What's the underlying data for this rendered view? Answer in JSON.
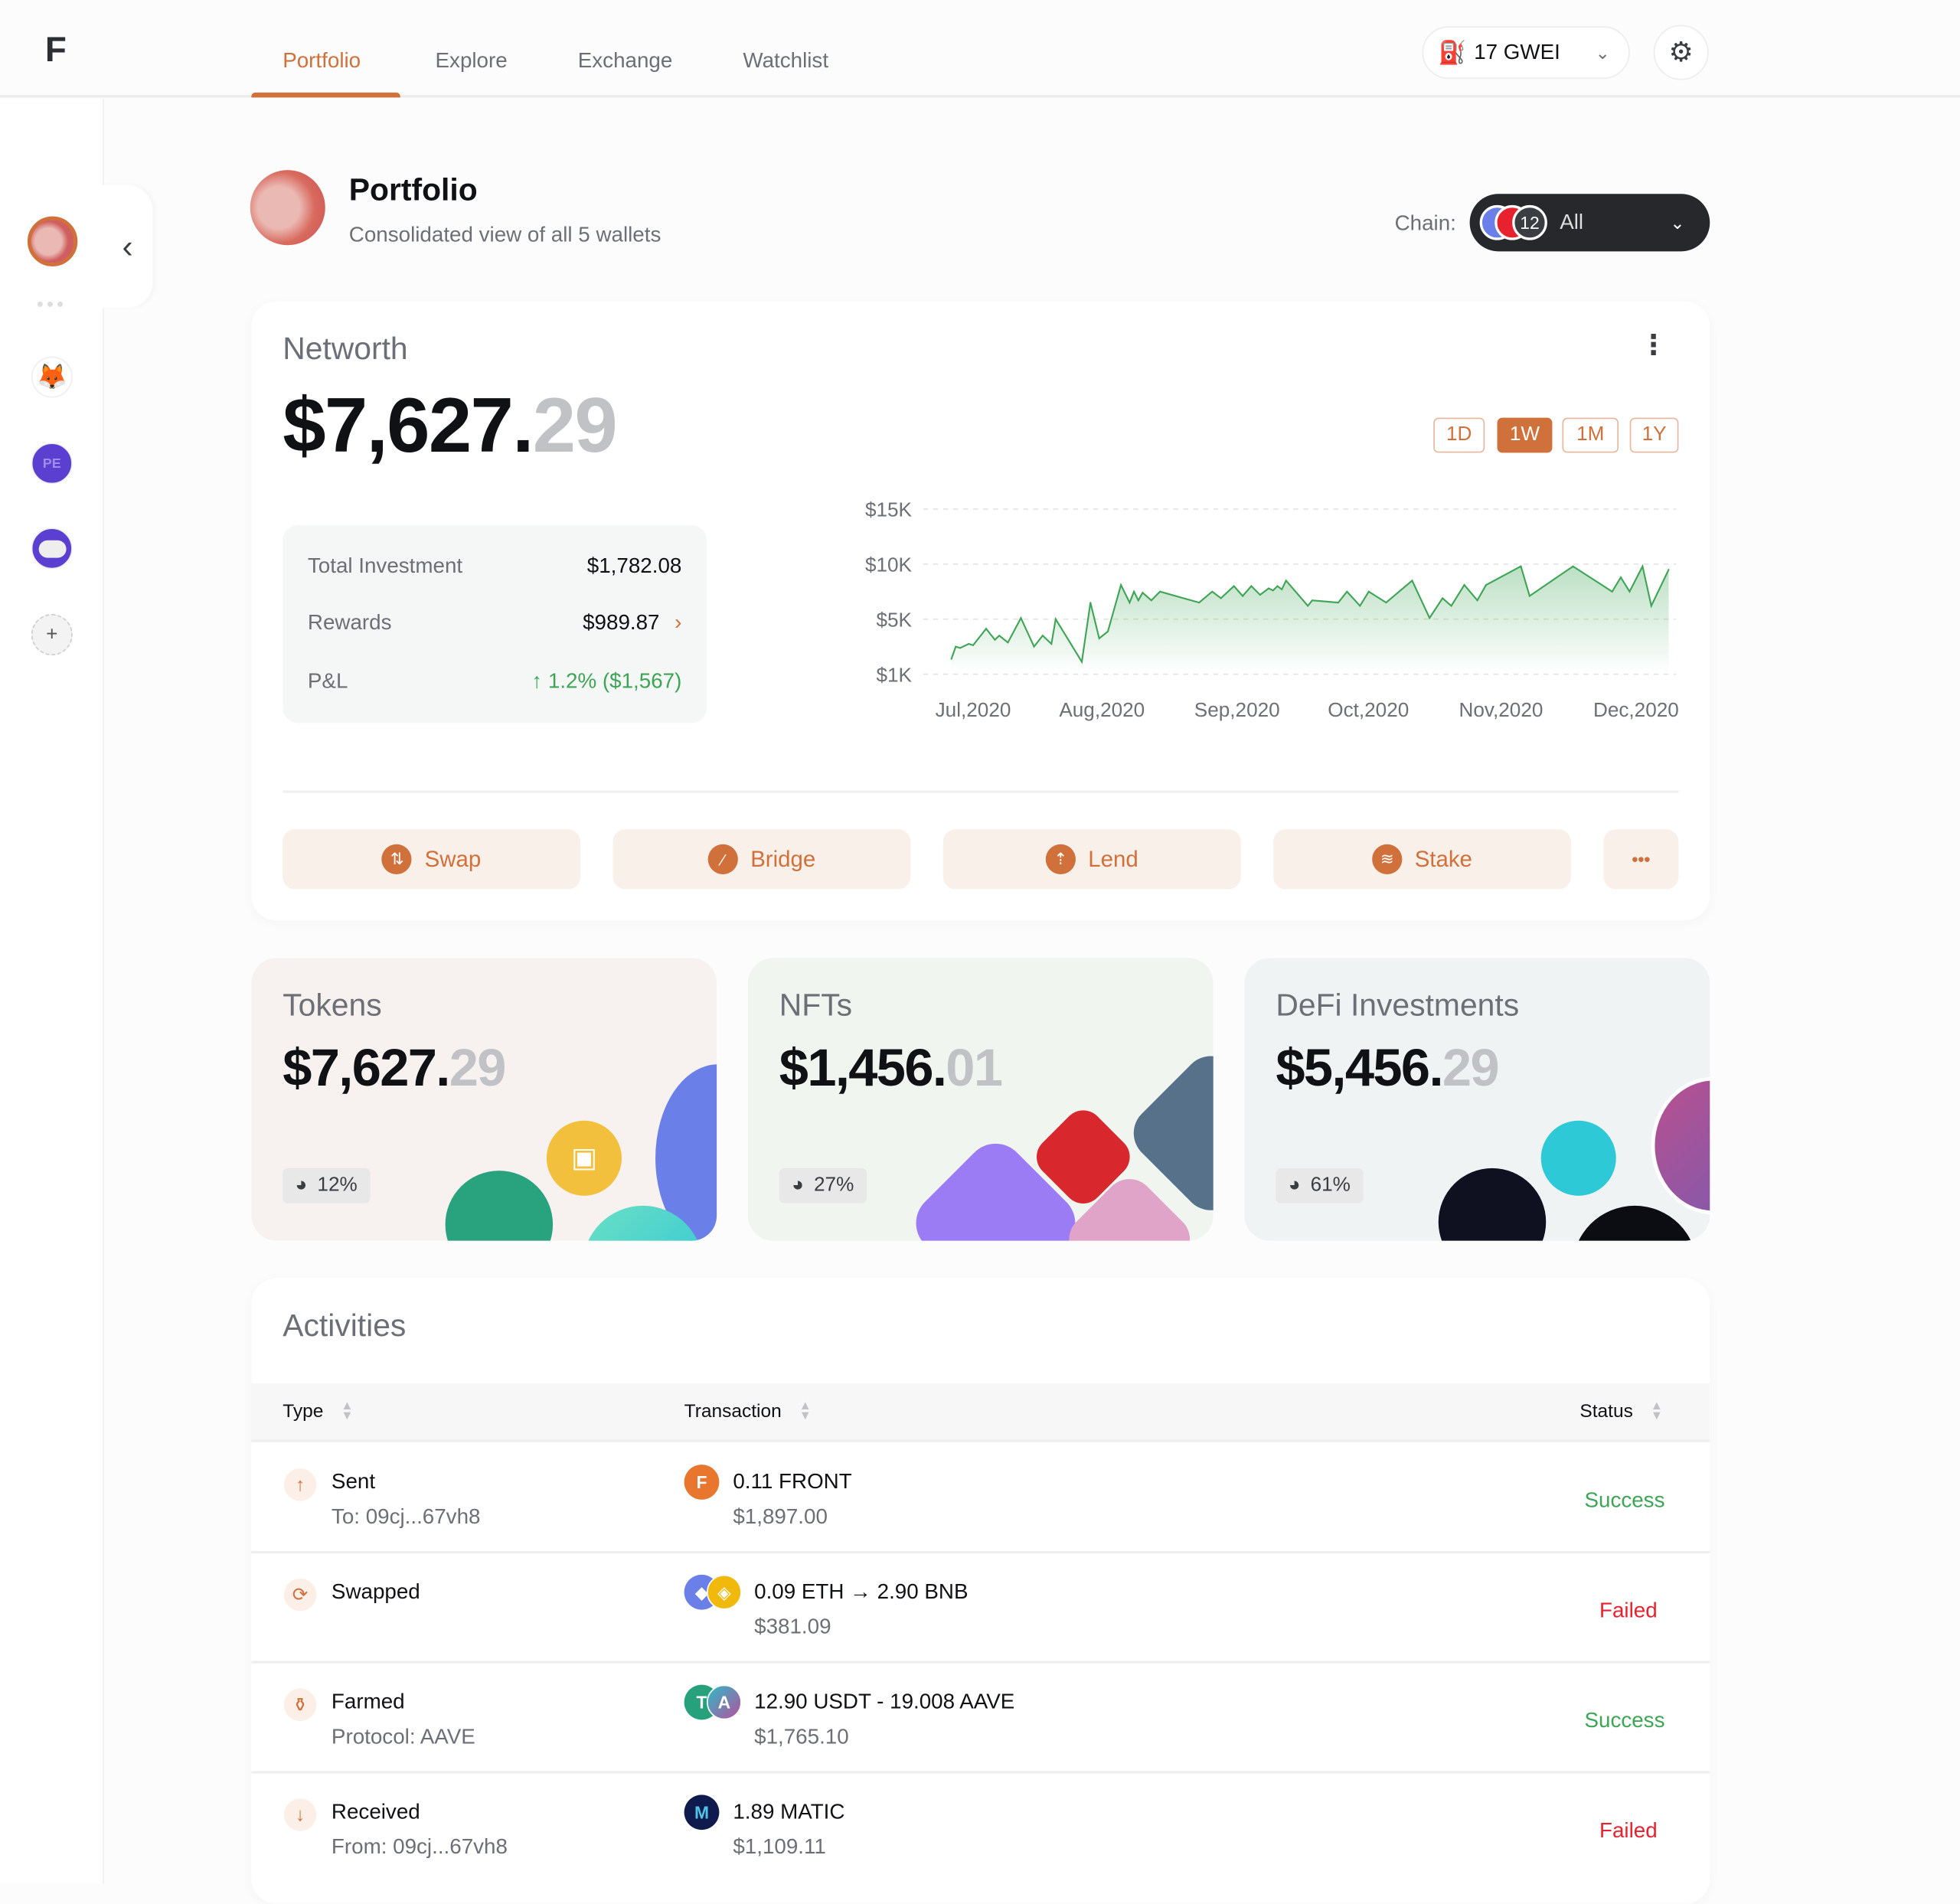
{
  "header": {
    "logo": "F",
    "tabs": [
      {
        "label": "Portfolio",
        "active": true
      },
      {
        "label": "Explore"
      },
      {
        "label": "Exchange"
      },
      {
        "label": "Watchlist"
      }
    ],
    "gas": "17 GWEI",
    "gas_icon": "gas-pump-icon",
    "settings_icon": "gear-icon"
  },
  "sidebar": {
    "wallets": [
      {
        "name": "portfolio-all",
        "active": true
      },
      {
        "name": "metamask"
      },
      {
        "name": "pe2c"
      },
      {
        "name": "ghost"
      }
    ],
    "add": "+"
  },
  "page": {
    "title": "Portfolio",
    "subtitle": "Consolidated view of all 5 wallets",
    "chain_label": "Chain:",
    "chain_count": "12",
    "chain_value": "All"
  },
  "networth": {
    "label": "Networth",
    "whole": "$7,627.",
    "cents": "29",
    "timeframes": [
      "1D",
      "1W",
      "1M",
      "1Y"
    ],
    "active_timeframe": "1W",
    "total_investment_label": "Total Investment",
    "total_investment": "$1,782.08",
    "rewards_label": "Rewards",
    "rewards": "$989.87",
    "pnl_label": "P&L",
    "pnl": "↑ 1.2% ($1,567)",
    "actions": [
      "Swap",
      "Bridge",
      "Lend",
      "Stake"
    ],
    "more": "•••"
  },
  "chart_data": {
    "type": "area",
    "y_ticks": [
      "$15K",
      "$10K",
      "$5K",
      "$1K"
    ],
    "y_tick_values": [
      15000,
      10000,
      5000,
      1000
    ],
    "x_ticks": [
      "Jul,2020",
      "Aug,2020",
      "Sep,2020",
      "Oct,2020",
      "Nov,2020",
      "Dec,2020"
    ],
    "grid": true,
    "color": "#3fa556",
    "points": [
      [
        "2020-06-26",
        2100
      ],
      [
        "2020-06-27",
        3000
      ],
      [
        "2020-06-28",
        2900
      ],
      [
        "2020-06-30",
        3200
      ],
      [
        "2020-07-01",
        3100
      ],
      [
        "2020-07-04",
        4300
      ],
      [
        "2020-07-06",
        3500
      ],
      [
        "2020-07-07",
        3800
      ],
      [
        "2020-07-09",
        3300
      ],
      [
        "2020-07-12",
        5100
      ],
      [
        "2020-07-15",
        3000
      ],
      [
        "2020-07-17",
        3800
      ],
      [
        "2020-07-19",
        3200
      ],
      [
        "2020-07-20",
        5000
      ],
      [
        "2020-07-26",
        1900
      ],
      [
        "2020-07-28",
        6500
      ],
      [
        "2020-07-30",
        3600
      ],
      [
        "2020-08-01",
        4100
      ],
      [
        "2020-08-04",
        8100
      ],
      [
        "2020-08-06",
        6500
      ],
      [
        "2020-08-07",
        7500
      ],
      [
        "2020-08-08",
        6700
      ],
      [
        "2020-08-09",
        7400
      ],
      [
        "2020-08-11",
        6700
      ],
      [
        "2020-08-13",
        7500
      ],
      [
        "2020-08-22",
        6500
      ],
      [
        "2020-08-25",
        7500
      ],
      [
        "2020-08-27",
        6900
      ],
      [
        "2020-08-30",
        8000
      ],
      [
        "2020-09-01",
        7100
      ],
      [
        "2020-09-03",
        8000
      ],
      [
        "2020-09-05",
        7200
      ],
      [
        "2020-09-07",
        7800
      ],
      [
        "2020-09-08",
        7600
      ],
      [
        "2020-09-09",
        8000
      ],
      [
        "2020-09-10",
        7700
      ],
      [
        "2020-09-11",
        8500
      ],
      [
        "2020-09-16",
        6200
      ],
      [
        "2020-09-17",
        6700
      ],
      [
        "2020-09-23",
        6500
      ],
      [
        "2020-09-25",
        7500
      ],
      [
        "2020-09-28",
        6200
      ],
      [
        "2020-09-30",
        7500
      ],
      [
        "2020-10-04",
        6500
      ],
      [
        "2020-10-10",
        8500
      ],
      [
        "2020-10-14",
        5100
      ],
      [
        "2020-10-17",
        6900
      ],
      [
        "2020-10-19",
        6200
      ],
      [
        "2020-10-22",
        8100
      ],
      [
        "2020-10-25",
        6700
      ],
      [
        "2020-10-27",
        8100
      ],
      [
        "2020-11-04",
        9800
      ],
      [
        "2020-11-06",
        7100
      ],
      [
        "2020-11-16",
        9800
      ],
      [
        "2020-11-25",
        7500
      ],
      [
        "2020-11-27",
        8800
      ],
      [
        "2020-11-29",
        7500
      ],
      [
        "2020-12-02",
        9800
      ],
      [
        "2020-12-04",
        6200
      ],
      [
        "2020-12-08",
        9500
      ]
    ]
  },
  "summary": [
    {
      "title": "Tokens",
      "whole": "$7,627.",
      "cents": "29",
      "share": "12%"
    },
    {
      "title": "NFTs",
      "whole": "$1,456.",
      "cents": "01",
      "share": "27%"
    },
    {
      "title": "DeFi Investments",
      "whole": "$5,456.",
      "cents": "29",
      "share": "61%"
    }
  ],
  "activities": {
    "title": "Activities",
    "columns": [
      "Type",
      "Transaction",
      "Status"
    ],
    "rows": [
      {
        "type": "Sent",
        "detail": "To: 09cj...67vh8",
        "tx": "0.11 FRONT",
        "value": "$1,897.00",
        "status": "Success"
      },
      {
        "type": "Swapped",
        "detail": "",
        "tx": "0.09 ETH → 2.90 BNB",
        "value": "$381.09",
        "status": "Failed"
      },
      {
        "type": "Farmed",
        "detail": "Protocol: AAVE",
        "tx": "12.90 USDT - 19.008 AAVE",
        "value": "$1,765.10",
        "status": "Success"
      },
      {
        "type": "Received",
        "detail": "From: 09cj...67vh8",
        "tx": "1.89 MATIC",
        "value": "$1,109.11",
        "status": "Failed"
      }
    ]
  },
  "colors": {
    "accent": "#d0703a",
    "success": "#3fa556",
    "failed": "#e8212e"
  }
}
